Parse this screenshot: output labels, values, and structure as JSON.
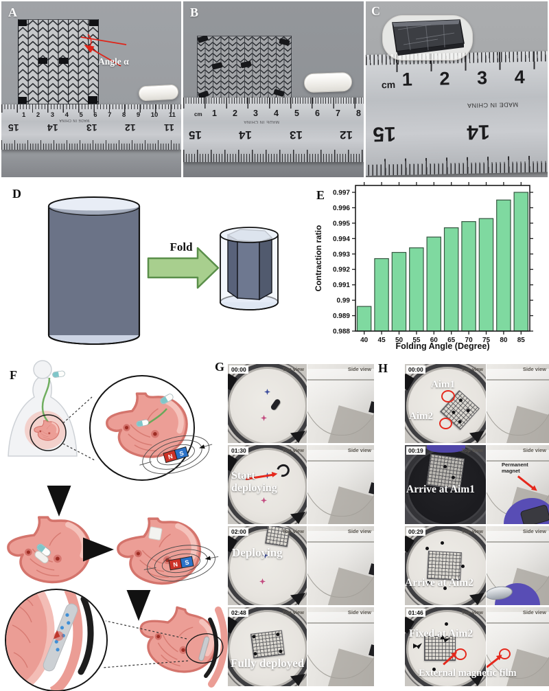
{
  "panels": {
    "a": {
      "label": "A",
      "annotation": "Angle α",
      "ruler": {
        "top_numbers": [
          "1",
          "2",
          "3",
          "4",
          "5",
          "6",
          "7",
          "8",
          "9",
          "10",
          "11"
        ],
        "bottom_numbers": [
          "15",
          "14",
          "13",
          "12",
          "11"
        ],
        "made_in": "MADE IN CHINA"
      }
    },
    "b": {
      "label": "B",
      "ruler": {
        "unit": "cm",
        "top_numbers": [
          "1",
          "2",
          "3",
          "4",
          "5",
          "6",
          "7",
          "8"
        ],
        "bottom_numbers": [
          "15",
          "14",
          "13",
          "12"
        ],
        "made_in": "MADE IN CHINA"
      }
    },
    "c": {
      "label": "C",
      "ruler": {
        "unit": "cm",
        "top_numbers": [
          "1",
          "2",
          "3",
          "4"
        ],
        "bottom_numbers": [
          "15",
          "14"
        ],
        "made_in": "MADE IN CHINA"
      }
    },
    "d": {
      "label": "D",
      "arrow_label": "Fold"
    },
    "e": {
      "label": "E"
    },
    "f": {
      "label": "F",
      "magnet_n": "N",
      "magnet_s": "S"
    },
    "g": {
      "label": "G",
      "view_top": "Top view",
      "view_side": "Side view",
      "frames": [
        {
          "time": "00:00",
          "caption": ""
        },
        {
          "time": "01:30",
          "caption": "Start deploying"
        },
        {
          "time": "02:00",
          "caption": "Deploying"
        },
        {
          "time": "02:48",
          "caption": "Fully deployed"
        }
      ]
    },
    "h": {
      "label": "H",
      "view_top": "Top view",
      "view_side": "Side view",
      "aim1": "Aim1",
      "aim2": "Aim2",
      "frames": [
        {
          "time": "00:00",
          "caption": ""
        },
        {
          "time": "00:19",
          "caption": "Arrive at Aim1",
          "side_note": "Permanent magnet"
        },
        {
          "time": "00:29",
          "caption": "Arrive at Aim2"
        },
        {
          "time": "01:46",
          "caption": "Fixed at Aim2",
          "footer_note": "External magnetic film"
        }
      ]
    }
  },
  "chart_data": {
    "type": "bar",
    "categories": [
      "40",
      "45",
      "50",
      "55",
      "60",
      "65",
      "70",
      "75",
      "80",
      "85"
    ],
    "values": [
      0.9896,
      0.9927,
      0.9931,
      0.9934,
      0.9941,
      0.9947,
      0.9951,
      0.9953,
      0.9965,
      0.997
    ],
    "xlabel": "Folding Angle (Degree)",
    "ylabel": "Contraction ratio",
    "ylim": [
      0.988,
      0.997
    ],
    "ytick_labels": [
      "0.988",
      "0.989",
      "0.99",
      "0.991",
      "0.992",
      "0.993",
      "0.994",
      "0.995",
      "0.996",
      "0.997"
    ],
    "grid": false,
    "legend": null,
    "bar_color": "#7fd9a0",
    "bar_edge": "#34553f",
    "axis_color": "#1a1a1a"
  }
}
